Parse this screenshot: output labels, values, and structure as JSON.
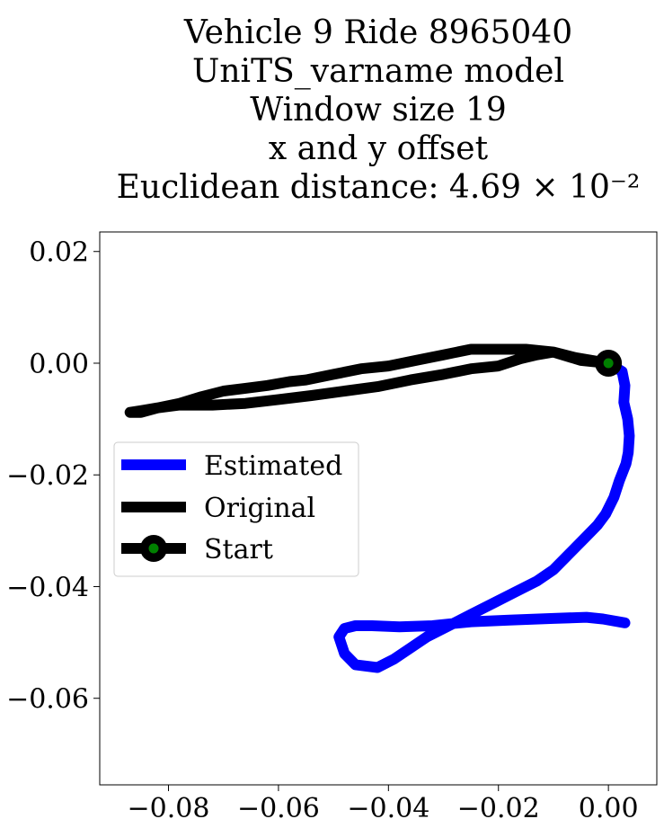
{
  "chart_data": {
    "type": "line",
    "title_lines": [
      "Vehicle 9 Ride 8965040",
      "UniTS_varname model",
      "Window size 19",
      "x and y offset",
      "Euclidean distance: 4.69 × 10⁻²"
    ],
    "xlim": [
      -0.0925,
      0.0088
    ],
    "ylim": [
      -0.0755,
      0.0235
    ],
    "x_ticks": [
      {
        "value": -0.08,
        "label": "−0.08"
      },
      {
        "value": -0.06,
        "label": "−0.06"
      },
      {
        "value": -0.04,
        "label": "−0.04"
      },
      {
        "value": -0.02,
        "label": "−0.02"
      },
      {
        "value": 0.0,
        "label": "0.00"
      }
    ],
    "y_ticks": [
      {
        "value": 0.02,
        "label": "0.02"
      },
      {
        "value": 0.0,
        "label": "0.00"
      },
      {
        "value": -0.02,
        "label": "−0.02"
      },
      {
        "value": -0.04,
        "label": "−0.04"
      },
      {
        "value": -0.06,
        "label": "−0.06"
      }
    ],
    "grid": false,
    "legend_position": "center-left",
    "series": [
      {
        "name": "Estimated",
        "color": "#0000ff",
        "points": [
          [
            0.0,
            0.0
          ],
          [
            0.0025,
            -0.0015
          ],
          [
            0.003,
            -0.004
          ],
          [
            0.0028,
            -0.007
          ],
          [
            0.0035,
            -0.01
          ],
          [
            0.0038,
            -0.013
          ],
          [
            0.0036,
            -0.016
          ],
          [
            0.0032,
            -0.018
          ],
          [
            0.002,
            -0.021
          ],
          [
            0.001,
            -0.024
          ],
          [
            -0.0005,
            -0.027
          ],
          [
            -0.002,
            -0.029
          ],
          [
            -0.004,
            -0.031
          ],
          [
            -0.007,
            -0.034
          ],
          [
            -0.01,
            -0.037
          ],
          [
            -0.013,
            -0.039
          ],
          [
            -0.017,
            -0.041
          ],
          [
            -0.021,
            -0.043
          ],
          [
            -0.025,
            -0.045
          ],
          [
            -0.029,
            -0.047
          ],
          [
            -0.033,
            -0.049
          ],
          [
            -0.036,
            -0.051
          ],
          [
            -0.039,
            -0.053
          ],
          [
            -0.042,
            -0.0545
          ],
          [
            -0.046,
            -0.054
          ],
          [
            -0.048,
            -0.052
          ],
          [
            -0.049,
            -0.049
          ],
          [
            -0.048,
            -0.0475
          ],
          [
            -0.046,
            -0.047
          ],
          [
            -0.043,
            -0.047
          ],
          [
            -0.038,
            -0.0472
          ],
          [
            -0.032,
            -0.047
          ],
          [
            -0.025,
            -0.0463
          ],
          [
            -0.018,
            -0.046
          ],
          [
            -0.01,
            -0.0457
          ],
          [
            -0.004,
            -0.0455
          ],
          [
            -0.001,
            -0.0458
          ],
          [
            0.003,
            -0.0465
          ]
        ]
      },
      {
        "name": "Original",
        "color": "#000000",
        "points": [
          [
            0.0,
            0.0
          ],
          [
            -0.005,
            0.0005
          ],
          [
            -0.01,
            0.002
          ],
          [
            -0.015,
            0.0025
          ],
          [
            -0.02,
            0.0025
          ],
          [
            -0.025,
            0.0025
          ],
          [
            -0.03,
            0.0015
          ],
          [
            -0.035,
            0.0005
          ],
          [
            -0.04,
            -0.0005
          ],
          [
            -0.045,
            -0.001
          ],
          [
            -0.05,
            -0.002
          ],
          [
            -0.055,
            -0.003
          ],
          [
            -0.058,
            -0.0033
          ],
          [
            -0.062,
            -0.004
          ],
          [
            -0.066,
            -0.0045
          ],
          [
            -0.07,
            -0.005
          ],
          [
            -0.074,
            -0.006
          ],
          [
            -0.078,
            -0.0072
          ],
          [
            -0.082,
            -0.008
          ],
          [
            -0.085,
            -0.0085
          ],
          [
            -0.087,
            -0.0088
          ],
          [
            -0.085,
            -0.0088
          ],
          [
            -0.082,
            -0.008
          ],
          [
            -0.078,
            -0.0075
          ],
          [
            -0.072,
            -0.0075
          ],
          [
            -0.066,
            -0.0072
          ],
          [
            -0.06,
            -0.0065
          ],
          [
            -0.054,
            -0.0058
          ],
          [
            -0.048,
            -0.005
          ],
          [
            -0.042,
            -0.0042
          ],
          [
            -0.036,
            -0.003
          ],
          [
            -0.03,
            -0.002
          ],
          [
            -0.025,
            -0.001
          ],
          [
            -0.02,
            -0.0005
          ],
          [
            -0.016,
            0.0008
          ],
          [
            -0.013,
            0.0015
          ],
          [
            -0.01,
            0.002
          ],
          [
            -0.006,
            0.001
          ],
          [
            -0.003,
            0.0005
          ],
          [
            0.0,
            0.0
          ]
        ]
      }
    ],
    "start_marker": {
      "name": "Start",
      "x": 0.0,
      "y": 0.0,
      "edge_color": "#000000",
      "face_color": "#008000"
    }
  }
}
